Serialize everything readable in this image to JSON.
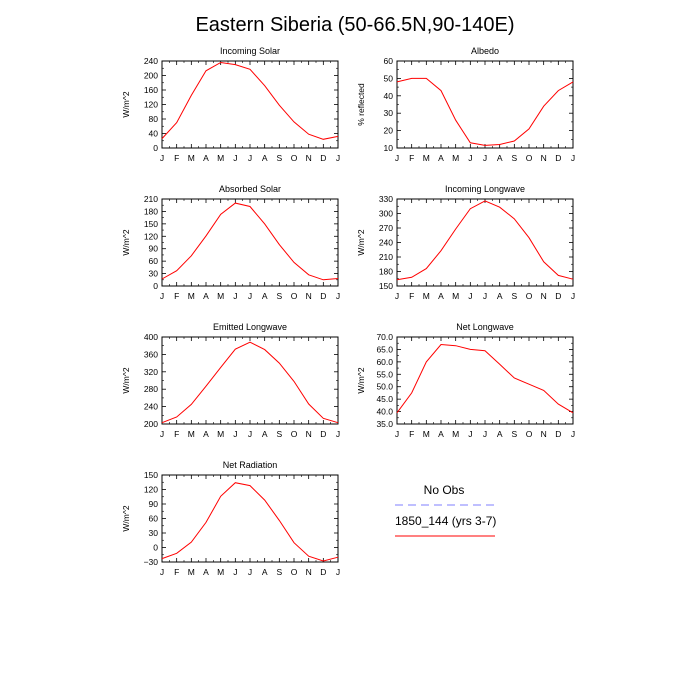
{
  "figure_title": "Eastern Siberia (50-66.5N,90-140E)",
  "months": [
    "J",
    "F",
    "M",
    "A",
    "M",
    "J",
    "J",
    "A",
    "S",
    "O",
    "N",
    "D",
    "J"
  ],
  "legend": [
    {
      "label": "No Obs",
      "color": "#7f7fff",
      "style": "dashed"
    },
    {
      "label": "1850_144 (yrs 3-7)",
      "color": "#ff0000",
      "style": "solid"
    }
  ],
  "chart_data": [
    {
      "type": "line",
      "title": "Incoming Solar",
      "ylabel": "W/m^2",
      "ylim": [
        0,
        240
      ],
      "yticks": [
        0,
        40,
        80,
        120,
        160,
        200,
        240
      ],
      "ytick_labels": [
        "0",
        "40",
        "80",
        "120",
        "160",
        "200",
        "240"
      ],
      "series": [
        {
          "name": "1850_144 (yrs 3-7)",
          "color": "#ff0000",
          "values": [
            26,
            70,
            145,
            213,
            236,
            230,
            217,
            172,
            118,
            72,
            38,
            24,
            32
          ]
        }
      ]
    },
    {
      "type": "line",
      "title": "Albedo",
      "ylabel": "% reflected",
      "ylim": [
        10,
        60
      ],
      "yticks": [
        10,
        20,
        30,
        40,
        50,
        60
      ],
      "ytick_labels": [
        "10",
        "20",
        "30",
        "40",
        "50",
        "60"
      ],
      "series": [
        {
          "name": "1850_144 (yrs 3-7)",
          "color": "#ff0000",
          "values": [
            48,
            50,
            50,
            43,
            26,
            13,
            11.5,
            12,
            14,
            21,
            34,
            43,
            48
          ]
        }
      ]
    },
    {
      "type": "line",
      "title": "Absorbed Solar",
      "ylabel": "W/m^2",
      "ylim": [
        0,
        210
      ],
      "yticks": [
        0,
        30,
        60,
        90,
        120,
        150,
        180,
        210
      ],
      "ytick_labels": [
        "0",
        "30",
        "60",
        "90",
        "120",
        "150",
        "180",
        "210"
      ],
      "series": [
        {
          "name": "1850_144 (yrs 3-7)",
          "color": "#ff0000",
          "values": [
            17,
            37,
            73,
            121,
            173,
            200,
            192,
            150,
            100,
            57,
            27,
            15,
            18
          ]
        }
      ]
    },
    {
      "type": "line",
      "title": "Incoming Longwave",
      "ylabel": "W/m^2",
      "ylim": [
        150,
        330
      ],
      "yticks": [
        150,
        180,
        210,
        240,
        270,
        300,
        330
      ],
      "ytick_labels": [
        "150",
        "180",
        "210",
        "240",
        "270",
        "300",
        "330"
      ],
      "series": [
        {
          "name": "1850_144 (yrs 3-7)",
          "color": "#ff0000",
          "values": [
            163,
            168,
            186,
            223,
            268,
            310,
            326,
            313,
            289,
            250,
            200,
            172,
            164
          ]
        }
      ]
    },
    {
      "type": "line",
      "title": "Emitted Longwave",
      "ylabel": "W/m^2",
      "ylim": [
        200,
        400
      ],
      "yticks": [
        200,
        240,
        280,
        320,
        360,
        400
      ],
      "ytick_labels": [
        "200",
        "240",
        "280",
        "320",
        "360",
        "400"
      ],
      "series": [
        {
          "name": "1850_144 (yrs 3-7)",
          "color": "#ff0000",
          "values": [
            203,
            216,
            245,
            287,
            330,
            372,
            388,
            371,
            340,
            298,
            246,
            213,
            203
          ]
        }
      ]
    },
    {
      "type": "line",
      "title": "Net Longwave",
      "ylabel": "W/m^2",
      "ylim": [
        35,
        70
      ],
      "yticks": [
        35,
        40,
        45,
        50,
        55,
        60,
        65,
        70
      ],
      "ytick_labels": [
        "35.0",
        "40.0",
        "45.0",
        "50.0",
        "55.0",
        "60.0",
        "65.0",
        "70.0"
      ],
      "series": [
        {
          "name": "1850_144 (yrs 3-7)",
          "color": "#ff0000",
          "values": [
            39.5,
            47.5,
            60,
            67,
            66.5,
            65,
            64.5,
            59,
            53.5,
            51,
            48.5,
            43,
            39.5
          ]
        }
      ]
    },
    {
      "type": "line",
      "title": "Net Radiation",
      "ylabel": "W/m^2",
      "ylim": [
        -30,
        150
      ],
      "yticks": [
        -30,
        0,
        30,
        60,
        90,
        120,
        150
      ],
      "ytick_labels": [
        "−30",
        "0",
        "30",
        "60",
        "90",
        "120",
        "150"
      ],
      "series": [
        {
          "name": "1850_144 (yrs 3-7)",
          "color": "#ff0000",
          "values": [
            -23,
            -12,
            11,
            52,
            106,
            134,
            128,
            98,
            56,
            10,
            -18,
            -28,
            -20
          ]
        }
      ]
    }
  ]
}
